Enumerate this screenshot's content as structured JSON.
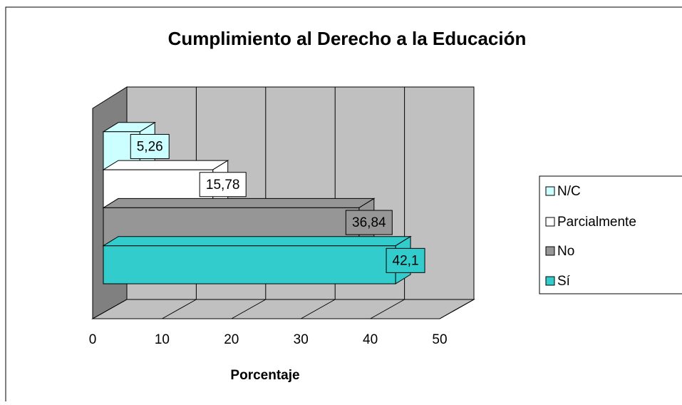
{
  "chart_data": {
    "type": "bar",
    "orientation": "horizontal",
    "title": "Cumplimiento al Derecho a la Educación",
    "xlabel": "Porcentaje",
    "categories": [
      "N/C",
      "Parcialmente",
      "No",
      "Sí"
    ],
    "values": [
      5.26,
      15.78,
      36.84,
      42.1
    ],
    "value_labels": [
      "5,26",
      "15,78",
      "36,84",
      "42,1"
    ],
    "colors": [
      "#ccffff",
      "#ffffff",
      "#969696",
      "#33cccc"
    ],
    "xlim": [
      0,
      50
    ],
    "xticks": [
      0,
      10,
      20,
      30,
      40,
      50
    ],
    "grid": true,
    "legend": "right"
  }
}
